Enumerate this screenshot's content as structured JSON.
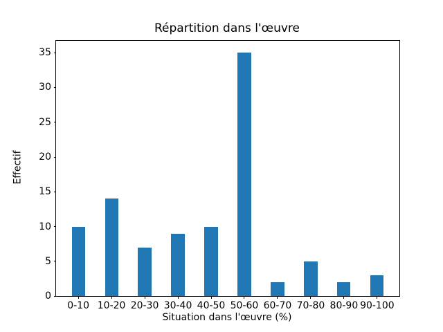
{
  "figure": {
    "background": "#ffffff",
    "text_color": "#000000"
  },
  "chart_data": {
    "type": "bar",
    "title": "Répartition dans l'œuvre",
    "xlabel": "Situation dans l'œuvre (%)",
    "ylabel": "Effectif",
    "categories": [
      "0-10",
      "10-20",
      "20-30",
      "30-40",
      "40-50",
      "50-60",
      "60-70",
      "70-80",
      "80-90",
      "90-100"
    ],
    "values": [
      10,
      14,
      7,
      9,
      10,
      35,
      2,
      5,
      2,
      3
    ],
    "yticks": [
      0,
      5,
      10,
      15,
      20,
      25,
      30,
      35
    ],
    "ylim": [
      0,
      36.75
    ],
    "bar_color": "#1f77b4",
    "axis_color": "#000000",
    "grid": false,
    "legend_position": "none"
  }
}
